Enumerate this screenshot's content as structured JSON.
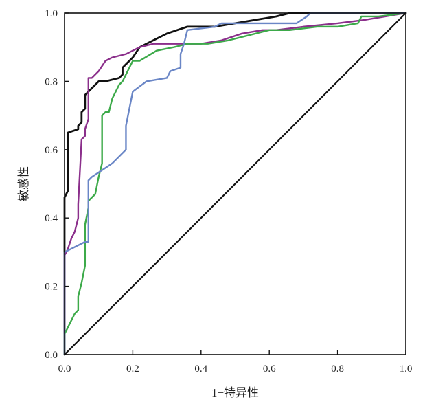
{
  "chart_data": {
    "type": "line",
    "title": "",
    "xlabel": "1−特异性",
    "ylabel": "敏感性",
    "xlim": [
      0,
      1
    ],
    "ylim": [
      0,
      1
    ],
    "x_ticks": [
      "0.0",
      "0.2",
      "0.4",
      "0.6",
      "0.8",
      "1.0"
    ],
    "y_ticks": [
      "0.0",
      "0.2",
      "0.4",
      "0.6",
      "0.8",
      "1.0"
    ],
    "grid": false,
    "legend": "none",
    "series": [
      {
        "color": "#111111",
        "x": [
          0.0,
          0.0,
          0.01,
          0.01,
          0.04,
          0.04,
          0.05,
          0.05,
          0.06,
          0.06,
          0.08,
          0.09,
          0.1,
          0.12,
          0.16,
          0.17,
          0.17,
          0.18,
          0.2,
          0.22,
          0.26,
          0.3,
          0.33,
          0.36,
          0.4,
          0.44,
          0.5,
          0.56,
          0.62,
          0.66,
          0.7,
          0.78,
          0.9,
          1.0
        ],
        "y": [
          0.0,
          0.46,
          0.48,
          0.65,
          0.66,
          0.67,
          0.68,
          0.71,
          0.72,
          0.76,
          0.78,
          0.79,
          0.8,
          0.8,
          0.81,
          0.82,
          0.84,
          0.85,
          0.87,
          0.9,
          0.92,
          0.94,
          0.95,
          0.96,
          0.96,
          0.96,
          0.97,
          0.98,
          0.99,
          1.0,
          1.0,
          1.0,
          1.0,
          1.0
        ]
      },
      {
        "color": "#8B2F8B",
        "x": [
          0.0,
          0.0,
          0.01,
          0.02,
          0.03,
          0.04,
          0.04,
          0.05,
          0.06,
          0.06,
          0.07,
          0.07,
          0.08,
          0.09,
          0.1,
          0.12,
          0.14,
          0.18,
          0.22,
          0.26,
          0.32,
          0.4,
          0.46,
          0.52,
          0.58,
          0.62,
          0.7,
          0.8,
          0.88,
          0.94,
          1.0
        ],
        "y": [
          0.0,
          0.29,
          0.31,
          0.34,
          0.36,
          0.4,
          0.44,
          0.63,
          0.64,
          0.66,
          0.69,
          0.81,
          0.81,
          0.82,
          0.83,
          0.86,
          0.87,
          0.88,
          0.9,
          0.91,
          0.91,
          0.91,
          0.92,
          0.94,
          0.95,
          0.95,
          0.96,
          0.97,
          0.98,
          0.99,
          1.0
        ]
      },
      {
        "color": "#3DAA4A",
        "x": [
          0.0,
          0.0,
          0.01,
          0.02,
          0.03,
          0.04,
          0.04,
          0.05,
          0.06,
          0.06,
          0.06,
          0.07,
          0.07,
          0.08,
          0.09,
          0.1,
          0.11,
          0.11,
          0.12,
          0.13,
          0.14,
          0.15,
          0.16,
          0.17,
          0.18,
          0.19,
          0.2,
          0.22,
          0.27,
          0.32,
          0.36,
          0.42,
          0.48,
          0.52,
          0.56,
          0.6,
          0.66,
          0.74,
          0.8,
          0.86,
          0.87,
          0.92,
          1.0
        ],
        "y": [
          0.0,
          0.06,
          0.08,
          0.1,
          0.12,
          0.13,
          0.17,
          0.21,
          0.26,
          0.33,
          0.38,
          0.43,
          0.45,
          0.46,
          0.47,
          0.52,
          0.56,
          0.7,
          0.71,
          0.71,
          0.75,
          0.77,
          0.79,
          0.8,
          0.82,
          0.84,
          0.86,
          0.86,
          0.89,
          0.9,
          0.91,
          0.91,
          0.92,
          0.93,
          0.94,
          0.95,
          0.95,
          0.96,
          0.96,
          0.97,
          0.99,
          0.99,
          1.0
        ]
      },
      {
        "color": "#6A86C6",
        "x": [
          0.0,
          0.0,
          0.02,
          0.04,
          0.06,
          0.07,
          0.07,
          0.08,
          0.14,
          0.18,
          0.18,
          0.19,
          0.2,
          0.24,
          0.3,
          0.31,
          0.34,
          0.34,
          0.35,
          0.36,
          0.44,
          0.46,
          0.52,
          0.6,
          0.68,
          0.71,
          0.72,
          0.86,
          0.88,
          1.0
        ],
        "y": [
          0.0,
          0.3,
          0.31,
          0.32,
          0.33,
          0.33,
          0.51,
          0.52,
          0.56,
          0.6,
          0.67,
          0.72,
          0.77,
          0.8,
          0.81,
          0.83,
          0.84,
          0.88,
          0.91,
          0.95,
          0.96,
          0.97,
          0.97,
          0.97,
          0.97,
          0.99,
          1.0,
          1.0,
          1.0,
          1.0
        ]
      },
      {
        "color": "#111111",
        "x": [
          0.0,
          1.0
        ],
        "y": [
          0.0,
          1.0
        ]
      }
    ]
  }
}
